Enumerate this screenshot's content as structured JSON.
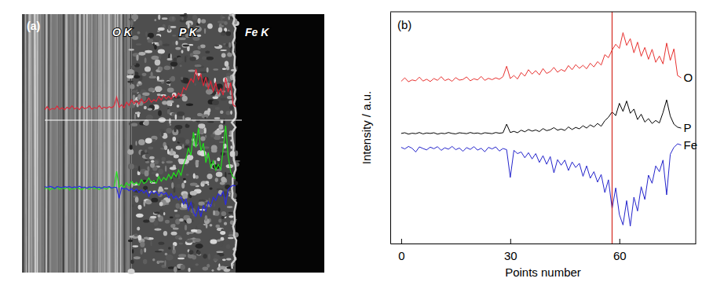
{
  "chart_data": [
    {
      "type": "image",
      "title": "(a)",
      "series": [
        {
          "name": "O K",
          "color": "#e0283a"
        },
        {
          "name": "P K",
          "color": "#22e01c"
        },
        {
          "name": "Fe K",
          "color": "#2a2ae6"
        }
      ]
    },
    {
      "type": "line",
      "title": "(b)",
      "xlabel": "Points number",
      "ylabel": "Intensity / a.u.",
      "x": [
        0,
        1,
        2,
        3,
        4,
        5,
        6,
        7,
        8,
        9,
        10,
        11,
        12,
        13,
        14,
        15,
        16,
        17,
        18,
        19,
        20,
        21,
        22,
        23,
        24,
        25,
        26,
        27,
        28,
        29,
        30,
        31,
        32,
        33,
        34,
        35,
        36,
        37,
        38,
        39,
        40,
        41,
        42,
        43,
        44,
        45,
        46,
        47,
        48,
        49,
        50,
        51,
        52,
        53,
        54,
        55,
        56,
        57,
        58,
        59,
        60,
        61,
        62,
        63,
        64,
        65,
        66,
        67,
        68,
        69,
        70,
        71,
        72,
        73,
        74,
        75,
        76,
        77
      ],
      "series": [
        {
          "name": "O",
          "color": "#e8312f",
          "values": [
            70,
            71.5,
            69.8,
            70.6,
            70.2,
            71.8,
            70.1,
            70.9,
            69.9,
            71.2,
            70.4,
            72.0,
            70.3,
            71.0,
            70.0,
            71.6,
            70.5,
            70.8,
            71.9,
            70.2,
            71.1,
            70.6,
            72.1,
            70.4,
            71.3,
            70.7,
            71.5,
            70.9,
            72.0,
            76.5,
            71.2,
            72.5,
            71.0,
            73.8,
            72.2,
            75.0,
            73.1,
            74.6,
            72.8,
            75.5,
            73.4,
            74.2,
            76.0,
            73.9,
            75.1,
            74.3,
            76.8,
            75.0,
            77.2,
            75.6,
            76.9,
            75.4,
            77.8,
            76.2,
            78.5,
            77.0,
            81.5,
            80.2,
            83.5,
            86.0,
            84.2,
            91.0,
            85.5,
            88.4,
            82.3,
            86.9,
            80.8,
            84.6,
            79.5,
            83.8,
            78.2,
            80.9,
            77.5,
            86.5,
            79.0,
            84.0,
            72.5,
            71.5
          ]
        },
        {
          "name": "P",
          "color": "#000000",
          "values": [
            47.5,
            47.8,
            47.2,
            47.6,
            47.4,
            47.9,
            47.3,
            47.7,
            47.5,
            47.8,
            47.2,
            47.6,
            47.4,
            47.9,
            47.5,
            47.3,
            47.8,
            47.6,
            47.4,
            47.9,
            47.5,
            47.7,
            47.3,
            47.8,
            47.6,
            47.4,
            47.9,
            47.6,
            47.8,
            51.5,
            47.9,
            48.4,
            47.8,
            48.9,
            48.2,
            49.2,
            48.5,
            49.0,
            48.3,
            49.6,
            48.7,
            49.1,
            50.0,
            48.9,
            49.4,
            48.8,
            50.3,
            49.2,
            50.1,
            49.5,
            50.8,
            49.8,
            51.2,
            50.3,
            51.8,
            50.6,
            53.0,
            54.5,
            56.8,
            55.2,
            60.5,
            57.0,
            61.5,
            56.2,
            58.0,
            53.5,
            55.8,
            52.4,
            53.9,
            51.8,
            53.1,
            52.0,
            56.5,
            62.0,
            55.0,
            51.5,
            50.2,
            49.8
          ]
        },
        {
          "name": "Fe",
          "color": "#2424cc",
          "values": [
            41.5,
            40.8,
            41.9,
            41.1,
            39.5,
            41.7,
            41.0,
            40.4,
            41.6,
            40.9,
            41.8,
            40.2,
            41.3,
            40.7,
            41.9,
            40.5,
            41.2,
            39.8,
            41.4,
            40.6,
            41.8,
            40.3,
            41.1,
            39.6,
            41.5,
            40.8,
            41.7,
            39.9,
            41.0,
            40.5,
            28.5,
            40.2,
            38.8,
            39.5,
            37.0,
            39.2,
            36.5,
            38.8,
            35.0,
            37.9,
            34.2,
            37.5,
            30.5,
            36.2,
            33.8,
            36.0,
            31.5,
            35.2,
            32.8,
            34.6,
            29.0,
            33.5,
            28.2,
            31.0,
            26.5,
            29.8,
            22.0,
            27.5,
            15.0,
            24.0,
            12.5,
            8.0,
            18.5,
            7.5,
            20.0,
            14.0,
            24.5,
            19.0,
            29.5,
            26.0,
            33.5,
            31.0,
            36.0,
            21.0,
            38.5,
            41.5,
            43.0,
            42.5
          ]
        }
      ],
      "xlim": [
        -3,
        81
      ],
      "xticks": [
        0,
        30,
        60
      ],
      "ylim": [
        0,
        100
      ],
      "yticks": [],
      "tick_labels": "x",
      "grid": false,
      "reference_line": {
        "x": 58,
        "color": "#d42a20"
      }
    }
  ]
}
